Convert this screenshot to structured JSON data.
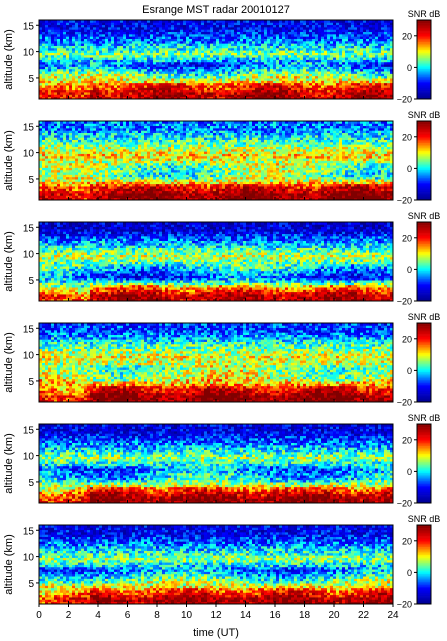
{
  "figure": {
    "title": "Esrange MST radar 20010127"
  },
  "chart_data": {
    "type": "heatmap",
    "title": "Esrange MST radar 20010127",
    "xlabel": "time (UT)",
    "ylabel": "altitude (km)",
    "xlim": [
      0,
      24
    ],
    "ylim": [
      1,
      16
    ],
    "x_ticks": [
      "0",
      "2",
      "4",
      "6",
      "8",
      "10",
      "12",
      "14",
      "16",
      "18",
      "20",
      "22",
      "24"
    ],
    "y_ticks": [
      "5",
      "10",
      "15"
    ],
    "colorbar": {
      "label": "SNR dB",
      "range": [
        -20,
        30
      ],
      "ticks": [
        "20",
        "0",
        "−20"
      ],
      "colormap": "jet",
      "colors": [
        "#00008f",
        "#0000ff",
        "#00ffff",
        "#ffff00",
        "#ff0000",
        "#800000"
      ]
    },
    "panels": [
      {
        "panel": 1,
        "layers": [
          {
            "altitude_km": 2.0,
            "snr_db": 22
          },
          {
            "altitude_km": 3.5,
            "snr_db": 15
          },
          {
            "altitude_km": 5.5,
            "snr_db": 5
          },
          {
            "altitude_km": 7.5,
            "snr_db": -8
          },
          {
            "altitude_km": 9.5,
            "snr_db": 5
          },
          {
            "altitude_km": 12.0,
            "snr_db": -5
          },
          {
            "altitude_km": 14.5,
            "snr_db": -12
          }
        ]
      },
      {
        "panel": 2,
        "layers": [
          {
            "altitude_km": 2.0,
            "snr_db": 25
          },
          {
            "altitude_km": 3.5,
            "snr_db": 18
          },
          {
            "altitude_km": 5.5,
            "snr_db": 3
          },
          {
            "altitude_km": 7.5,
            "snr_db": 5
          },
          {
            "altitude_km": 9.5,
            "snr_db": 12
          },
          {
            "altitude_km": 12.0,
            "snr_db": 3
          },
          {
            "altitude_km": 14.5,
            "snr_db": -5
          }
        ]
      },
      {
        "panel": 3,
        "layers": [
          {
            "altitude_km": 2.0,
            "snr_db": 22
          },
          {
            "altitude_km": 3.5,
            "snr_db": 12
          },
          {
            "altitude_km": 5.5,
            "snr_db": -8
          },
          {
            "altitude_km": 7.5,
            "snr_db": 0
          },
          {
            "altitude_km": 9.5,
            "snr_db": 8
          },
          {
            "altitude_km": 12.0,
            "snr_db": -3
          },
          {
            "altitude_km": 14.5,
            "snr_db": -14
          }
        ]
      },
      {
        "panel": 4,
        "layers": [
          {
            "altitude_km": 2.0,
            "snr_db": 25
          },
          {
            "altitude_km": 3.5,
            "snr_db": 18
          },
          {
            "altitude_km": 5.5,
            "snr_db": 8
          },
          {
            "altitude_km": 7.5,
            "snr_db": 5
          },
          {
            "altitude_km": 9.5,
            "snr_db": 10
          },
          {
            "altitude_km": 12.0,
            "snr_db": 2
          },
          {
            "altitude_km": 14.5,
            "snr_db": -8
          }
        ]
      },
      {
        "panel": 5,
        "layers": [
          {
            "altitude_km": 2.0,
            "snr_db": 24
          },
          {
            "altitude_km": 3.5,
            "snr_db": 15
          },
          {
            "altitude_km": 5.5,
            "snr_db": 0
          },
          {
            "altitude_km": 7.5,
            "snr_db": -5
          },
          {
            "altitude_km": 9.5,
            "snr_db": 6
          },
          {
            "altitude_km": 12.0,
            "snr_db": -4
          },
          {
            "altitude_km": 14.5,
            "snr_db": -13
          }
        ]
      },
      {
        "panel": 6,
        "layers": [
          {
            "altitude_km": 2.0,
            "snr_db": 23
          },
          {
            "altitude_km": 3.5,
            "snr_db": 14
          },
          {
            "altitude_km": 5.5,
            "snr_db": 4
          },
          {
            "altitude_km": 7.5,
            "snr_db": -6
          },
          {
            "altitude_km": 9.5,
            "snr_db": 6
          },
          {
            "altitude_km": 12.0,
            "snr_db": -4
          },
          {
            "altitude_km": 14.5,
            "snr_db": -12
          }
        ]
      }
    ]
  }
}
